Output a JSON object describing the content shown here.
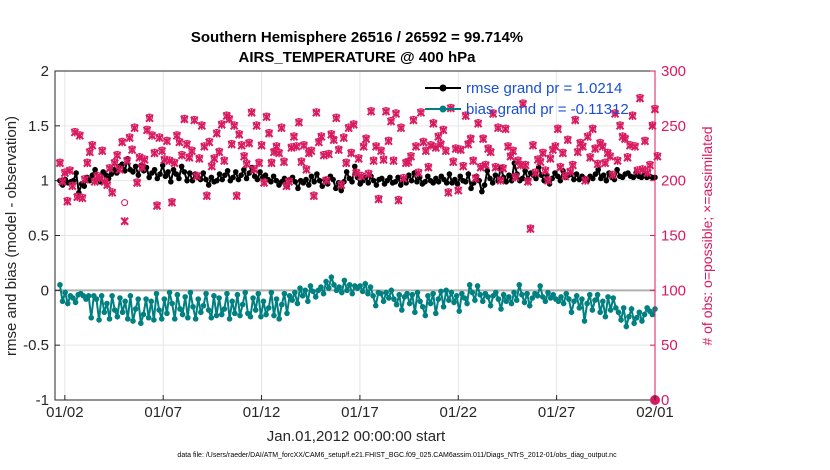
{
  "chart_data": {
    "type": "line",
    "title": "Southern Hemisphere 26516 / 26592 = 99.714%",
    "subtitle": "AIRS_TEMPERATURE @ 400 hPa",
    "xlabel": "Jan.01,2012 00:00:00 start",
    "ylabel": "rmse and bias (model - observation)",
    "ylabel_right": "# of obs: o=possible; ×=assimilated",
    "x_tick_labels": [
      "01/02",
      "01/07",
      "01/12",
      "01/17",
      "01/22",
      "01/27",
      "02/01"
    ],
    "x_tick_days": [
      1,
      6,
      11,
      16,
      21,
      26,
      31
    ],
    "xlim_days": [
      0.5,
      31.0
    ],
    "ylim": [
      -1,
      2
    ],
    "y_ticks": [
      "-1",
      "-0.5",
      "0",
      "0.5",
      "1",
      "1.5",
      "2"
    ],
    "ylim_right": [
      0,
      300
    ],
    "y_ticks_right": [
      "0",
      "50",
      "100",
      "150",
      "200",
      "250",
      "300"
    ],
    "legend_position": "top-right",
    "series": [
      {
        "name": "rmse grand pr = 1.0214",
        "color": "#000000",
        "values": [
          1.0,
          0.96,
          1.01,
          0.98,
          0.99,
          1.0,
          1.07,
          0.89,
          0.97,
          0.95,
          1.03,
          1.0,
          1.05,
          1.1,
          1.02,
          0.99,
          1.08,
          1.05,
          1.02,
          1.06,
          1.1,
          1.07,
          1.13,
          1.15,
          1.09,
          1.2,
          1.1,
          1.08,
          1.13,
          1.05,
          1.14,
          1.09,
          1.12,
          1.03,
          1.07,
          1.1,
          1.02,
          1.06,
          1.14,
          1.04,
          1.08,
          0.99,
          1.1,
          1.06,
          1.02,
          1.13,
          1.08,
          1.0,
          1.07,
          1.0,
          1.06,
          1.03,
          1.01,
          1.07,
          1.01,
          0.96,
          1.03,
          0.99,
          1.0,
          1.06,
          1.01,
          1.05,
          1.09,
          1.0,
          1.03,
          1.08,
          1.01,
          1.05,
          1.1,
          1.02,
          1.07,
          1.12,
          1.04,
          1.01,
          1.08,
          1.03,
          1.05,
          1.01,
          0.99,
          1.04,
          1.0,
          0.96,
          0.99,
          1.02,
          0.95,
          1.01,
          1.03,
          0.99,
          0.93,
          1.0,
          0.98,
          1.01,
          0.96,
          1.04,
          0.99,
          1.06,
          1.0,
          0.95,
          1.01,
          0.97,
          1.04,
          1.01,
          0.93,
          0.98,
          0.91,
          0.99,
          1.08,
          1.02,
          0.99,
          1.13,
          1.03,
          0.97,
          1.0,
          1.03,
          0.98,
          1.04,
          1.0,
          0.96,
          1.01,
          1.02,
          0.97,
          1.0,
          1.03,
          0.98,
          0.99,
          1.03,
          0.96,
          1.01,
          0.98,
          1.05,
          1.0,
          1.07,
          0.99,
          1.03,
          0.97,
          0.99,
          1.04,
          1.0,
          0.98,
          1.02,
          0.99,
          1.04,
          1.01,
          0.98,
          1.06,
          0.98,
          1.01,
          0.97,
          1.04,
          1.0,
          0.99,
          1.06,
          0.93,
          0.98,
          1.04,
          1.0,
          0.9,
          0.96,
          1.09,
          1.02,
          0.98,
          1.05,
          1.0,
          1.12,
          1.03,
          0.99,
          1.05,
          1.0,
          1.16,
          1.06,
          1.0,
          1.02,
          1.09,
          1.01,
          1.07,
          1.05,
          1.02,
          1.12,
          1.05,
          1.0,
          1.05,
          0.97,
          1.02,
          1.07,
          1.04,
          1.0,
          1.09,
          1.03,
          1.05,
          1.06,
          1.01,
          1.06,
          1.01,
          1.04,
          1.02,
          1.0,
          1.04,
          1.02,
          1.06,
          1.1,
          1.02,
          1.05,
          1.0,
          1.07,
          1.03,
          1.01,
          1.1,
          1.04,
          1.03,
          1.06,
          1.07,
          1.04,
          1.03,
          1.07,
          1.04,
          1.03,
          1.05,
          1.03,
          1.04,
          1.03,
          1.03
        ]
      },
      {
        "name": "bias grand pr = -0.11312",
        "color": "#008080",
        "values": [
          0.05,
          -0.1,
          -0.02,
          -0.12,
          -0.05,
          -0.07,
          -0.11,
          -0.04,
          -0.03,
          -0.05,
          -0.08,
          -0.05,
          -0.25,
          -0.05,
          -0.08,
          -0.27,
          -0.05,
          -0.2,
          -0.12,
          -0.26,
          -0.05,
          -0.18,
          -0.24,
          -0.07,
          -0.2,
          -0.1,
          -0.26,
          -0.05,
          -0.28,
          -0.17,
          -0.08,
          -0.3,
          -0.22,
          -0.08,
          -0.25,
          -0.1,
          -0.27,
          -0.03,
          -0.18,
          -0.26,
          -0.08,
          -0.21,
          -0.02,
          -0.12,
          -0.26,
          -0.04,
          -0.17,
          -0.22,
          -0.06,
          -0.25,
          -0.02,
          -0.15,
          -0.26,
          -0.08,
          -0.2,
          -0.14,
          -0.03,
          -0.18,
          -0.25,
          -0.05,
          -0.23,
          -0.07,
          -0.22,
          -0.17,
          -0.03,
          -0.26,
          -0.1,
          -0.21,
          -0.04,
          -0.23,
          -0.13,
          -0.02,
          -0.21,
          -0.24,
          -0.07,
          -0.18,
          -0.03,
          -0.24,
          -0.1,
          -0.22,
          -0.16,
          -0.02,
          -0.23,
          -0.08,
          -0.26,
          -0.13,
          -0.03,
          -0.21,
          -0.05,
          -0.09,
          -0.02,
          -0.12,
          0.02,
          -0.05,
          0.0,
          -0.1,
          0.04,
          -0.01,
          -0.06,
          0.0,
          0.03,
          -0.03,
          0.08,
          0.02,
          0.12,
          0.05,
          0.0,
          0.03,
          -0.02,
          0.09,
          0.0,
          0.05,
          -0.03,
          0.04,
          0.02,
          0.04,
          -0.01,
          0.06,
          -0.03,
          0.03,
          -0.05,
          -0.14,
          -0.02,
          -0.03,
          -0.1,
          -0.02,
          -0.07,
          0.0,
          -0.08,
          -0.13,
          -0.04,
          -0.18,
          -0.06,
          -0.03,
          -0.12,
          -0.04,
          -0.2,
          -0.02,
          -0.1,
          -0.15,
          -0.23,
          -0.05,
          -0.12,
          -0.03,
          -0.21,
          -0.08,
          -0.01,
          -0.15,
          0.0,
          -0.09,
          -0.02,
          -0.11,
          -0.05,
          -0.19,
          -0.03,
          -0.07,
          -0.12,
          0.05,
          -0.02,
          -0.09,
          0.04,
          -0.04,
          -0.1,
          -0.03,
          -0.06,
          -0.14,
          -0.05,
          -0.02,
          -0.08,
          -0.17,
          -0.04,
          -0.1,
          -0.06,
          -0.12,
          -0.02,
          -0.09,
          0.05,
          -0.04,
          -0.11,
          -0.03,
          -0.14,
          -0.07,
          -0.03,
          -0.05,
          0.04,
          -0.06,
          -0.1,
          -0.02,
          -0.07,
          -0.04,
          -0.08,
          -0.1,
          -0.06,
          -0.12,
          -0.03,
          -0.08,
          -0.2,
          -0.1,
          -0.05,
          -0.16,
          -0.08,
          -0.28,
          -0.12,
          -0.04,
          -0.18,
          -0.09,
          -0.04,
          -0.2,
          -0.1,
          -0.24,
          -0.06,
          -0.18,
          -0.07,
          -0.16,
          -0.2,
          -0.27,
          -0.16,
          -0.33,
          -0.24,
          -0.17,
          -0.3,
          -0.25,
          -0.2,
          -0.28,
          -0.22,
          -0.16,
          -0.19,
          -0.22,
          -0.17
        ]
      }
    ],
    "obs_possible": [
      217,
      200,
      208,
      182,
      210,
      196,
      245,
      186,
      242,
      185,
      202,
      217,
      227,
      233,
      200,
      205,
      203,
      228,
      200,
      197,
      212,
      190,
      217,
      224,
      211,
      236,
      180,
      219,
      240,
      229,
      249,
      199,
      222,
      213,
      220,
      247,
      258,
      242,
      226,
      178,
      240,
      228,
      220,
      237,
      219,
      181,
      217,
      242,
      236,
      224,
      257,
      234,
      222,
      228,
      256,
      205,
      221,
      251,
      232,
      187,
      236,
      214,
      221,
      244,
      227,
      252,
      219,
      260,
      257,
      234,
      251,
      187,
      243,
      233,
      223,
      216,
      235,
      263,
      211,
      251,
      217,
      233,
      199,
      259,
      244,
      217,
      227,
      232,
      226,
      249,
      218,
      196,
      200,
      231,
      241,
      232,
      254,
      218,
      233,
      211,
      226,
      228,
      187,
      263,
      236,
      241,
      224,
      201,
      225,
      243,
      238,
      258,
      229,
      197,
      240,
      217,
      249,
      226,
      252,
      208,
      221,
      205,
      232,
      239,
      207,
      264,
      219,
      232,
      184,
      228,
      220,
      264,
      237,
      255,
      219,
      262,
      183,
      249,
      203,
      217,
      218,
      223,
      256,
      232,
      208,
      263,
      236,
      228,
      213,
      233,
      253,
      231,
      241,
      234,
      247,
      228,
      190,
      267,
      218,
      230,
      192,
      229,
      214,
      260,
      234,
      239,
      219,
      203,
      253,
      213,
      239,
      215,
      230,
      227,
      262,
      213,
      249,
      201,
      212,
      248,
      232,
      223,
      228,
      204,
      219,
      215,
      271,
      215,
      200,
      157,
      233,
      208,
      220,
      218,
      226,
      210,
      201,
      221,
      229,
      232,
      248,
      213,
      226,
      205,
      238,
      209,
      215,
      256,
      227,
      235,
      232,
      201,
      241,
      222,
      248,
      230,
      216,
      235,
      232,
      217,
      226,
      223,
      206,
      262,
      219,
      251,
      241,
      239,
      222,
      233,
      260,
      232,
      210,
      276,
      211,
      237,
      208,
      215,
      251,
      266,
      223
    ],
    "obs_assimilated": [
      216,
      199,
      207,
      181,
      209,
      195,
      244,
      185,
      241,
      184,
      201,
      216,
      226,
      232,
      199,
      204,
      202,
      227,
      199,
      196,
      211,
      189,
      216,
      223,
      210,
      235,
      163,
      218,
      239,
      228,
      248,
      198,
      221,
      212,
      219,
      246,
      257,
      241,
      225,
      177,
      239,
      227,
      219,
      236,
      218,
      180,
      216,
      241,
      235,
      223,
      256,
      233,
      221,
      227,
      255,
      204,
      220,
      250,
      231,
      186,
      235,
      213,
      220,
      243,
      226,
      251,
      218,
      259,
      256,
      233,
      250,
      186,
      242,
      232,
      222,
      215,
      234,
      262,
      210,
      250,
      216,
      232,
      198,
      258,
      243,
      216,
      226,
      231,
      225,
      248,
      217,
      195,
      199,
      230,
      240,
      231,
      253,
      217,
      232,
      210,
      225,
      227,
      186,
      262,
      235,
      240,
      223,
      200,
      224,
      242,
      237,
      257,
      228,
      196,
      239,
      216,
      248,
      225,
      251,
      207,
      220,
      204,
      231,
      238,
      206,
      263,
      218,
      231,
      183,
      227,
      219,
      263,
      236,
      254,
      218,
      261,
      182,
      248,
      202,
      216,
      217,
      222,
      255,
      231,
      207,
      262,
      235,
      227,
      212,
      232,
      252,
      230,
      240,
      233,
      246,
      227,
      189,
      266,
      217,
      229,
      191,
      228,
      213,
      259,
      233,
      238,
      218,
      202,
      252,
      212,
      238,
      214,
      229,
      226,
      261,
      212,
      248,
      200,
      211,
      247,
      231,
      222,
      227,
      203,
      218,
      214,
      270,
      214,
      199,
      156,
      232,
      207,
      219,
      217,
      225,
      209,
      200,
      220,
      228,
      231,
      247,
      212,
      225,
      204,
      237,
      208,
      214,
      255,
      226,
      234,
      231,
      200,
      240,
      221,
      247,
      229,
      215,
      234,
      231,
      216,
      225,
      222,
      205,
      261,
      218,
      250,
      240,
      238,
      221,
      232,
      259,
      231,
      209,
      275,
      210,
      236,
      207,
      214,
      250,
      265,
      222
    ],
    "final_obs_marker_value": 0
  },
  "footer": {
    "data_file": "data file: /Users/raeder/DAI/ATM_forcXX/CAM6_setup/f.e21.FHIST_BGC.f09_025.CAM6assim.011/Diags_NTrS_2012-01/obs_diag_output.nc"
  },
  "colors": {
    "rmse": "#000000",
    "bias": "#008080",
    "obs": "#d81b60",
    "legend_text": "#1a4fd6",
    "zero_line": "#b0b0b0",
    "grid": "#e6e6e6"
  }
}
